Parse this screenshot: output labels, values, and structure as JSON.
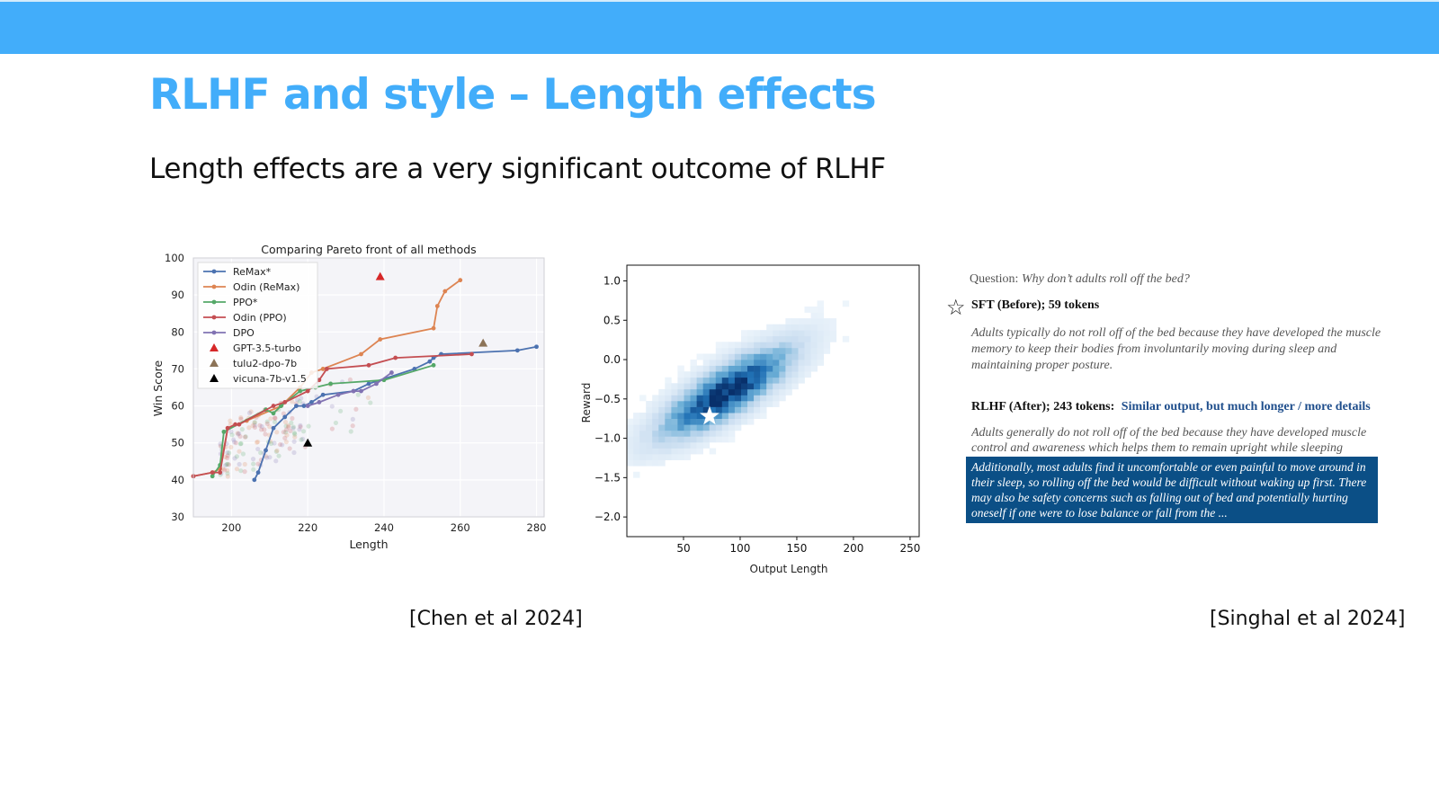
{
  "slide": {
    "title": "RLHF and style – Length effects",
    "subtitle": "Length effects are a very significant outcome of RLHF",
    "citation_left": "[Chen et al 2024]",
    "citation_right": "[Singhal et al 2024]",
    "colors": {
      "header_bar": "#42adfa",
      "title": "#42adfa"
    }
  },
  "chart_data": [
    {
      "type": "line",
      "title": "Comparing Pareto front of all methods",
      "xlabel": "Length",
      "ylabel": "Win Score",
      "xlim": [
        190,
        282
      ],
      "ylim": [
        30,
        100
      ],
      "xticks": [
        200,
        220,
        240,
        260,
        280
      ],
      "yticks": [
        30,
        40,
        50,
        60,
        70,
        80,
        90,
        100
      ],
      "grid": true,
      "legend_position": "top-left",
      "series": [
        {
          "name": "ReMax*",
          "color": "#4c72b0",
          "points": [
            [
              206,
              40
            ],
            [
              207,
              42
            ],
            [
              209,
              48
            ],
            [
              211,
              54
            ],
            [
              214,
              57
            ],
            [
              217,
              60
            ],
            [
              219,
              60
            ],
            [
              221,
              61
            ],
            [
              224,
              63
            ],
            [
              232,
              64
            ],
            [
              236,
              66
            ],
            [
              248,
              70
            ],
            [
              252,
              72
            ],
            [
              253,
              73
            ],
            [
              255,
              74
            ],
            [
              275,
              75
            ],
            [
              280,
              76
            ]
          ]
        },
        {
          "name": "Odin (ReMax)",
          "color": "#dd8452",
          "points": [
            [
              190,
              41
            ],
            [
              195,
              42
            ],
            [
              197,
              43
            ],
            [
              199,
              54
            ],
            [
              204,
              56
            ],
            [
              213,
              60
            ],
            [
              218,
              65
            ],
            [
              221,
              69
            ],
            [
              224,
              70
            ],
            [
              234,
              74
            ],
            [
              239,
              78
            ],
            [
              253,
              81
            ],
            [
              254,
              87
            ],
            [
              256,
              91
            ],
            [
              260,
              94
            ]
          ]
        },
        {
          "name": "PPO*",
          "color": "#55a868",
          "points": [
            [
              195,
              41
            ],
            [
              197,
              44
            ],
            [
              198,
              53
            ],
            [
              209,
              59
            ],
            [
              211,
              58
            ],
            [
              213,
              60
            ],
            [
              218,
              64
            ],
            [
              222,
              65
            ],
            [
              226,
              66
            ],
            [
              240,
              67
            ],
            [
              253,
              71
            ]
          ]
        },
        {
          "name": "Odin (PPO)",
          "color": "#c44e52",
          "points": [
            [
              190,
              41
            ],
            [
              195,
              42
            ],
            [
              197,
              42
            ],
            [
              199,
              54
            ],
            [
              201,
              55
            ],
            [
              202,
              55
            ],
            [
              211,
              60
            ],
            [
              214,
              61
            ],
            [
              220,
              64
            ],
            [
              223,
              67
            ],
            [
              225,
              70
            ],
            [
              236,
              71
            ],
            [
              243,
              73
            ],
            [
              263,
              74
            ]
          ]
        },
        {
          "name": "DPO",
          "color": "#8172b2",
          "points": [
            [
              220,
              60
            ],
            [
              223,
              61
            ],
            [
              228,
              63
            ],
            [
              232,
              64
            ],
            [
              234,
              64
            ],
            [
              238,
              66
            ],
            [
              242,
              69
            ]
          ]
        }
      ],
      "markers": [
        {
          "name": "GPT-3.5-turbo",
          "x": 239,
          "y": 95,
          "color": "#d62728"
        },
        {
          "name": "tulu2-dpo-7b",
          "x": 266,
          "y": 77,
          "color": "#8c7357"
        },
        {
          "name": "vicuna-7b-v1.5",
          "x": 220,
          "y": 50,
          "color": "#000000"
        }
      ]
    },
    {
      "type": "heatmap",
      "xlabel": "Output Length",
      "ylabel": "Reward",
      "xlim": [
        0,
        258
      ],
      "ylim": [
        -2.25,
        1.2
      ],
      "xticks": [
        50,
        100,
        150,
        200,
        250
      ],
      "yticks": [
        -2.0,
        -1.5,
        -1.0,
        -0.5,
        0.0,
        0.5,
        1.0
      ],
      "density": {
        "center_x": 85,
        "center_y": -0.45,
        "correlation": "positive",
        "colormap": "Blues"
      },
      "star_marker": {
        "x": 73,
        "y": -0.72
      }
    }
  ],
  "example": {
    "question_label": "Question:",
    "question_text": "Why don’t adults roll off the bed?",
    "star_icon": "star-icon",
    "sft_header": "SFT (Before); 59 tokens",
    "sft_text": "Adults typically do not roll off of the bed because they have developed the muscle memory to keep their bodies from involuntarily moving during sleep and maintaining proper posture.",
    "rlhf_header": "RLHF (After); 243 tokens:",
    "rlhf_note": "Similar output, but much longer / more details",
    "rlhf_text": "Adults generally do not roll off of the bed because they have developed muscle control and awareness which helps them to remain upright while sleeping",
    "rlhf_highlight": "Additionally, most adults find it uncomfortable or even painful to move around in their sleep, so rolling off the bed would be difficult without waking up first. There may also be safety concerns such as falling out of bed and potentially hurting oneself if one were to lose balance or fall from the ...",
    "highlight_color": "#0b4f86"
  }
}
